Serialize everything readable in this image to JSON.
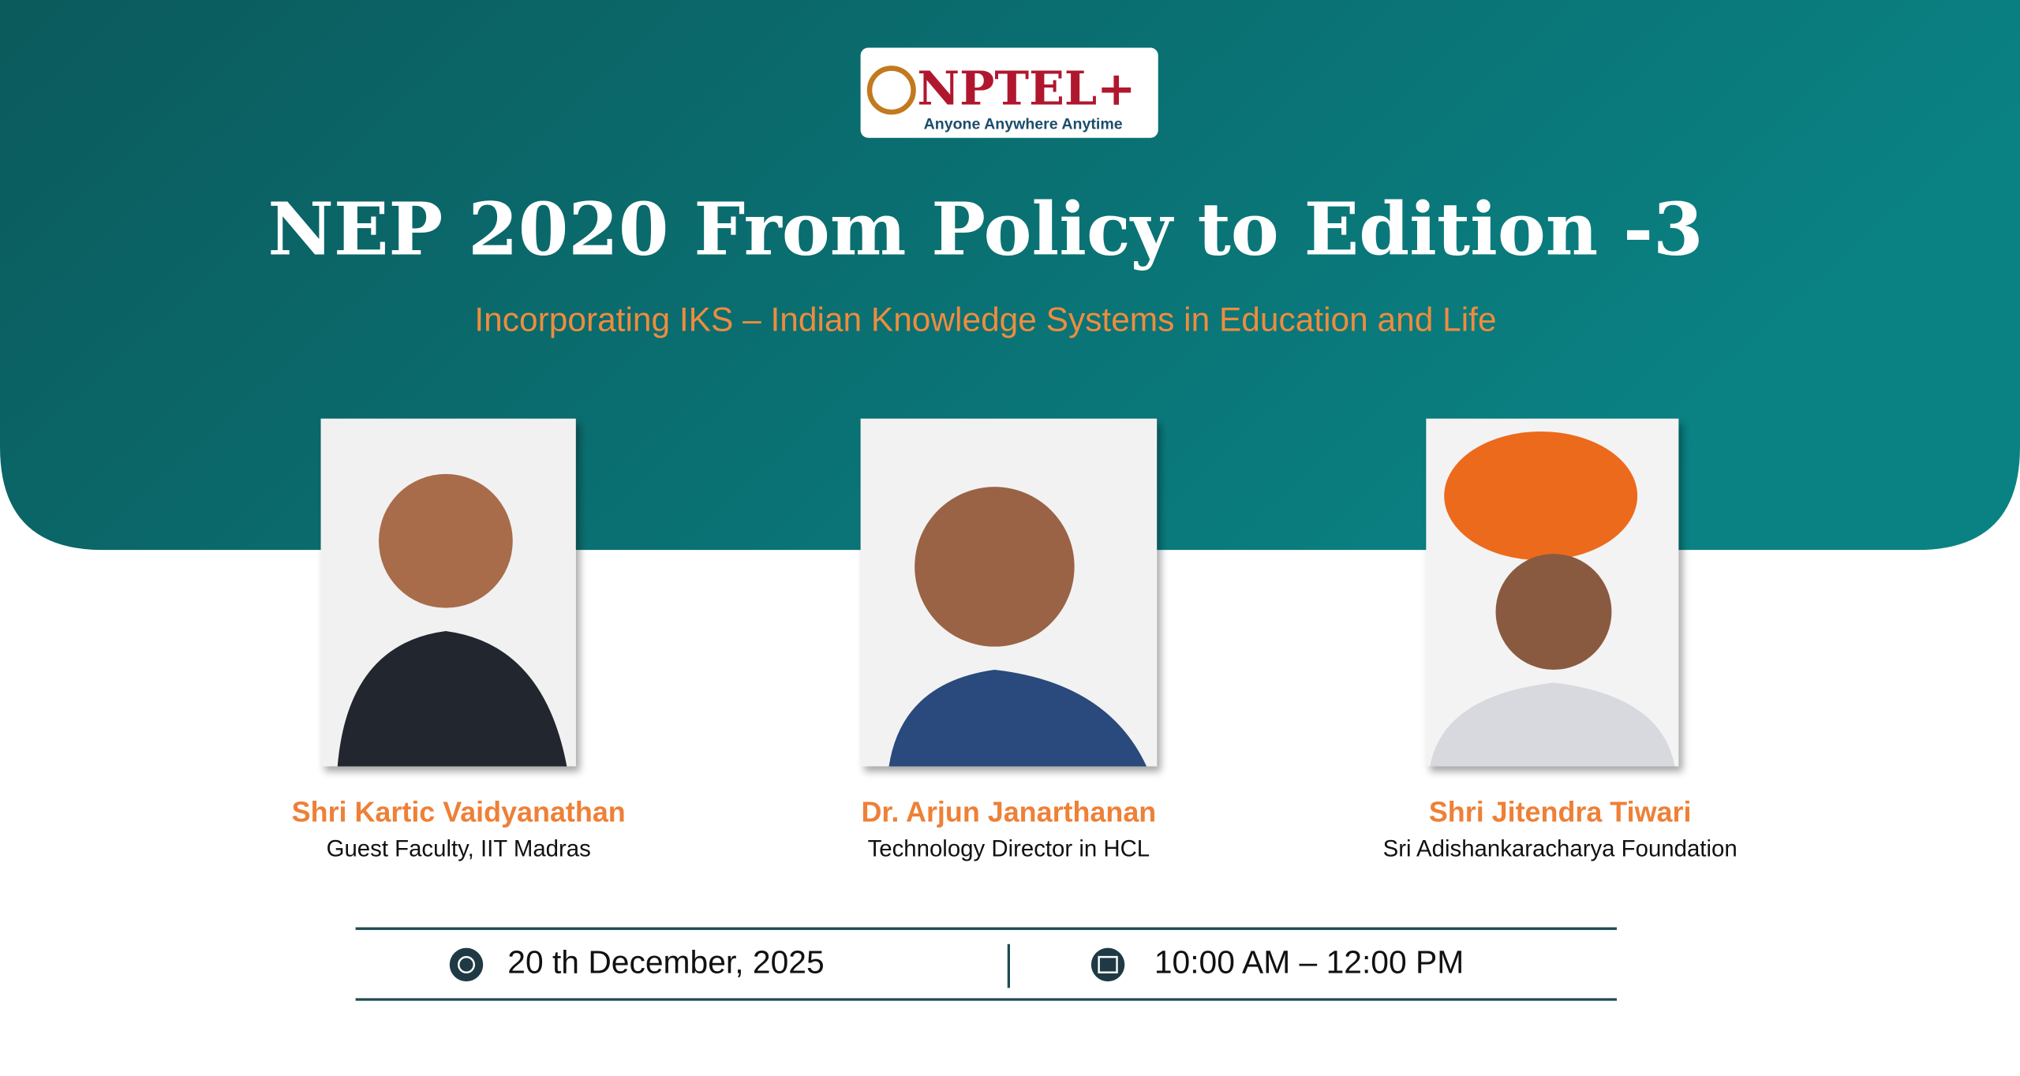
{
  "logo": {
    "name": "NPTEL+",
    "tagline": "Anyone Anywhere Anytime"
  },
  "title": "NEP 2020 From Policy to Edition -3",
  "subtitle": "Incorporating IKS – Indian Knowledge Systems in Education and Life",
  "speakers": [
    {
      "name": "Shri Kartic Vaidyanathan",
      "role": "Guest Faculty, IIT Madras"
    },
    {
      "name": "Dr. Arjun Janarthanan",
      "role": "Technology Director in HCL"
    },
    {
      "name": "Shri Jitendra Tiwari",
      "role": "Sri Adishankaracharya Foundation"
    }
  ],
  "event": {
    "date": "20 th December, 2025",
    "time": "10:00 AM – 12:00 PM"
  }
}
